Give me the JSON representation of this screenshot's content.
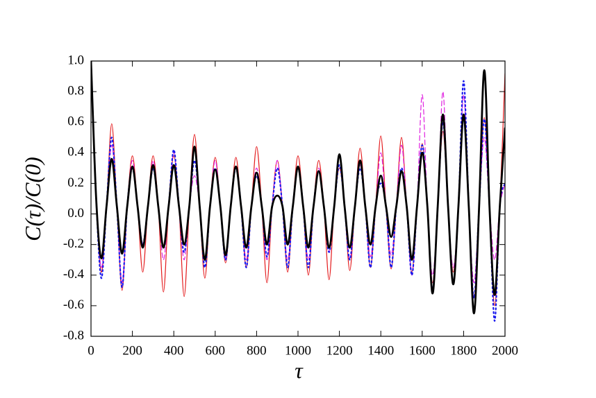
{
  "chart_data": {
    "type": "line",
    "x_label": "τ",
    "y_label": "C(τ)/C(0)",
    "x": [
      0,
      25,
      50,
      75,
      100,
      125,
      150,
      175,
      200,
      225,
      250,
      275,
      300,
      325,
      350,
      375,
      400,
      425,
      450,
      475,
      500,
      525,
      550,
      575,
      600,
      625,
      650,
      675,
      700,
      725,
      750,
      775,
      800,
      825,
      850,
      875,
      900,
      925,
      950,
      975,
      1000,
      1025,
      1050,
      1075,
      1100,
      1125,
      1150,
      1175,
      1200,
      1225,
      1250,
      1275,
      1300,
      1325,
      1350,
      1375,
      1400,
      1425,
      1450,
      1475,
      1500,
      1525,
      1550,
      1575,
      1600,
      1625,
      1650,
      1675,
      1700,
      1725,
      1750,
      1775,
      1800,
      1825,
      1850,
      1875,
      1900,
      1925,
      1950,
      1975,
      2000
    ],
    "series": [
      {
        "color": "#e41a1c",
        "dash": "none",
        "width": 1.2,
        "values": [
          1.0,
          0.1,
          -0.38,
          0.05,
          0.59,
          0.05,
          -0.5,
          0.05,
          0.38,
          0.05,
          -0.38,
          0.05,
          0.38,
          0.05,
          -0.51,
          0.05,
          0.38,
          0.05,
          -0.54,
          0.05,
          0.52,
          0.05,
          -0.42,
          0.05,
          0.37,
          0.05,
          -0.32,
          0.05,
          0.37,
          0.05,
          -0.35,
          0.05,
          0.44,
          0.05,
          -0.45,
          0.05,
          0.35,
          0.05,
          -0.38,
          0.05,
          0.38,
          0.05,
          -0.4,
          0.05,
          0.35,
          0.05,
          -0.43,
          0.05,
          0.3,
          0.05,
          -0.37,
          0.05,
          0.43,
          0.05,
          -0.35,
          0.05,
          0.51,
          0.05,
          -0.36,
          0.05,
          0.5,
          0.05,
          -0.38,
          0.05,
          0.46,
          0.05,
          -0.45,
          0.05,
          0.54,
          0.05,
          -0.38,
          0.05,
          0.63,
          0.05,
          -0.55,
          0.05,
          0.63,
          0.05,
          -0.6,
          0.05,
          0.92
        ]
      },
      {
        "color": "#e020e0",
        "dash": "7 4",
        "width": 1.2,
        "values": [
          1.0,
          0.1,
          -0.35,
          0.05,
          0.45,
          0.05,
          -0.45,
          0.05,
          0.35,
          0.05,
          -0.2,
          0.05,
          0.35,
          0.05,
          -0.3,
          0.05,
          0.4,
          0.05,
          -0.3,
          0.05,
          0.25,
          0.05,
          -0.3,
          0.05,
          0.35,
          0.05,
          -0.3,
          0.05,
          0.3,
          0.05,
          -0.3,
          0.05,
          0.3,
          0.05,
          -0.3,
          0.05,
          0.35,
          0.05,
          -0.3,
          0.05,
          0.3,
          0.05,
          -0.3,
          0.05,
          0.3,
          0.05,
          -0.25,
          0.05,
          0.38,
          0.05,
          -0.3,
          0.05,
          0.32,
          0.05,
          -0.28,
          0.05,
          0.4,
          0.05,
          -0.27,
          0.05,
          0.45,
          0.05,
          -0.4,
          0.05,
          0.78,
          0.05,
          -0.4,
          0.05,
          0.8,
          0.05,
          -0.35,
          0.05,
          0.78,
          0.05,
          -0.45,
          0.05,
          0.5,
          0.05,
          -0.3,
          0.05,
          0.2
        ]
      },
      {
        "color": "#1a1aee",
        "dash": "2 4",
        "width": 2.2,
        "values": [
          1.0,
          0.1,
          -0.42,
          0.05,
          0.5,
          0.05,
          -0.48,
          0.05,
          0.3,
          0.05,
          -0.2,
          0.05,
          0.3,
          0.05,
          -0.22,
          0.05,
          0.42,
          0.05,
          -0.25,
          0.05,
          0.35,
          0.05,
          -0.35,
          0.05,
          0.3,
          0.05,
          -0.3,
          0.05,
          0.3,
          0.05,
          -0.35,
          0.05,
          0.25,
          0.05,
          -0.28,
          0.05,
          0.3,
          0.05,
          -0.35,
          0.05,
          0.3,
          0.05,
          -0.35,
          0.05,
          0.28,
          0.05,
          -0.25,
          0.05,
          0.32,
          0.05,
          -0.3,
          0.05,
          0.3,
          0.05,
          -0.35,
          0.05,
          0.2,
          0.05,
          -0.35,
          0.05,
          0.3,
          0.05,
          -0.4,
          0.05,
          0.45,
          0.05,
          -0.5,
          0.05,
          0.6,
          0.05,
          -0.45,
          0.05,
          0.87,
          0.05,
          -0.55,
          0.05,
          0.62,
          0.05,
          -0.7,
          0.05,
          0.2
        ]
      },
      {
        "color": "#000000",
        "dash": "none",
        "width": 2.8,
        "values": [
          1.0,
          0.1,
          -0.29,
          0.05,
          0.36,
          0.05,
          -0.26,
          0.05,
          0.31,
          0.05,
          -0.22,
          0.05,
          0.32,
          0.05,
          -0.22,
          0.05,
          0.32,
          0.05,
          -0.2,
          0.05,
          0.44,
          0.05,
          -0.3,
          0.05,
          0.29,
          0.05,
          -0.27,
          0.05,
          0.31,
          0.05,
          -0.22,
          0.05,
          0.27,
          0.05,
          -0.2,
          0.05,
          0.12,
          0.05,
          -0.2,
          0.05,
          0.31,
          0.05,
          -0.22,
          0.05,
          0.28,
          0.05,
          -0.22,
          0.05,
          0.39,
          0.05,
          -0.22,
          0.05,
          0.35,
          0.05,
          -0.2,
          0.05,
          0.25,
          0.05,
          -0.15,
          0.05,
          0.28,
          0.05,
          -0.3,
          0.05,
          0.4,
          0.05,
          -0.52,
          0.05,
          0.65,
          0.05,
          -0.46,
          0.05,
          0.65,
          0.05,
          -0.65,
          0.05,
          0.94,
          0.05,
          -0.53,
          0.05,
          0.56
        ]
      }
    ],
    "xlim": [
      0,
      2000
    ],
    "ylim": [
      -0.8,
      1.0
    ],
    "xticks": [
      0,
      200,
      400,
      600,
      800,
      1000,
      1200,
      1400,
      1600,
      1800,
      2000
    ],
    "yticks": [
      -0.8,
      -0.6,
      -0.4,
      -0.2,
      {
        "value": 0,
        "label": "0.0"
      },
      0.2,
      0.4,
      0.6,
      0.8,
      {
        "value": 1,
        "label": "1.0"
      }
    ],
    "grid": false
  }
}
